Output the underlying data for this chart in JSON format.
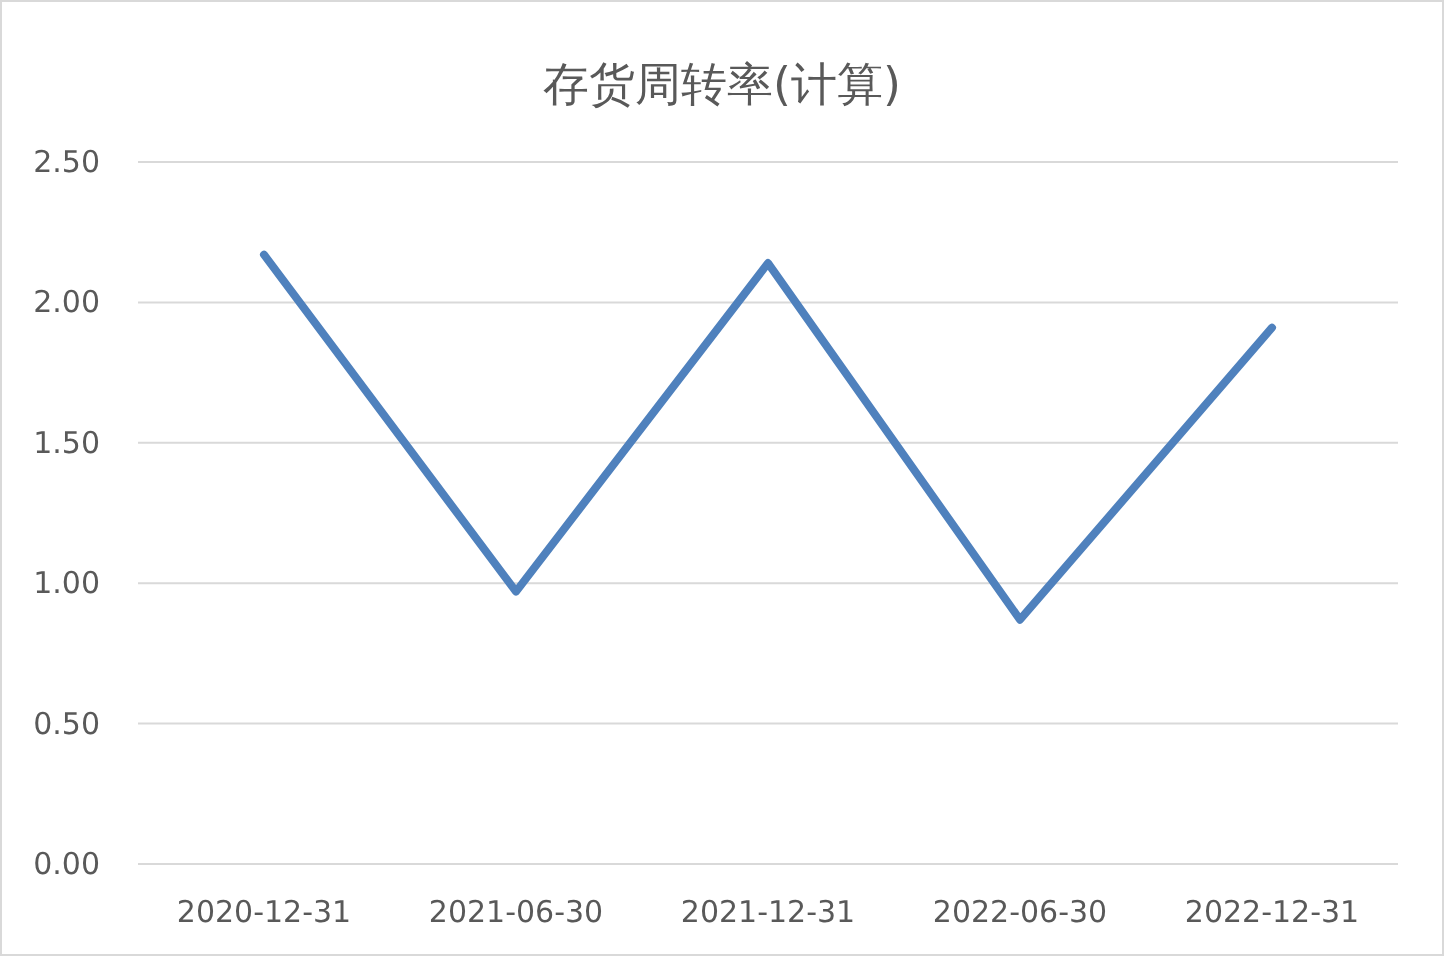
{
  "chart_data": {
    "type": "line",
    "title": "存货周转率(计算)",
    "categories": [
      "2020-12-31",
      "2021-06-30",
      "2021-12-31",
      "2022-06-30",
      "2022-12-31"
    ],
    "series": [
      {
        "color": "#4f81bd",
        "values": [
          2.17,
          0.97,
          2.14,
          0.87,
          1.91
        ]
      }
    ],
    "ylim": [
      0,
      2.5
    ],
    "yticks": [
      {
        "value": 0,
        "label": "0.00"
      },
      {
        "value": 0.5,
        "label": "0.50"
      },
      {
        "value": 1,
        "label": "1.00"
      },
      {
        "value": 1.5,
        "label": "1.50"
      },
      {
        "value": 2,
        "label": "2.00"
      },
      {
        "value": 2.5,
        "label": "2.50"
      }
    ],
    "grid": "y",
    "marker": "none",
    "line_style": "solid"
  }
}
